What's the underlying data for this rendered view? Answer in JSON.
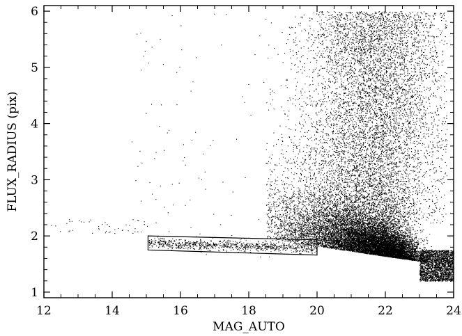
{
  "chart_data": {
    "type": "scatter",
    "title": "",
    "xlabel": "MAG_AUTO",
    "ylabel": "FLUX_RADIUS (pix)",
    "xlim": [
      12,
      24
    ],
    "ylim": [
      0.9,
      6.1
    ],
    "x_ticks": [
      "12",
      "14",
      "16",
      "18",
      "20",
      "22",
      "24"
    ],
    "y_ticks": [
      "1",
      "2",
      "3",
      "4",
      "5",
      "6"
    ],
    "grid": false,
    "legend": "none",
    "marker_color": "#000000",
    "selection_box": {
      "polygon": [
        [
          15.05,
          2.0
        ],
        [
          20.0,
          1.93
        ],
        [
          20.0,
          1.66
        ],
        [
          15.05,
          1.75
        ]
      ]
    },
    "series": [
      {
        "components": [
          {
            "kind": "star_locus",
            "count": 900,
            "x": [
              15.05,
              20.0
            ],
            "y_start": 1.88,
            "y_end": 1.79,
            "scatter": 0.045
          },
          {
            "kind": "bright_stars",
            "count": 45,
            "x": [
              12.2,
              15.0
            ],
            "y": [
              2.05,
              2.3
            ]
          },
          {
            "kind": "galaxy_core",
            "count": 13000,
            "x_peak": 22.6,
            "y_center": 1.85,
            "y_scale": 0.55
          },
          {
            "kind": "galaxy_cloud",
            "count": 6500,
            "x_peak": 21.7,
            "y": [
              2.2,
              6.0
            ]
          },
          {
            "kind": "faint_tail",
            "count": 2200,
            "x": [
              23.0,
              24.0
            ],
            "y": [
              1.2,
              1.75
            ]
          },
          {
            "kind": "sparse_bright",
            "count": 110,
            "x": [
              14.5,
              20.0
            ],
            "y": [
              2.0,
              6.0
            ]
          }
        ]
      }
    ]
  }
}
